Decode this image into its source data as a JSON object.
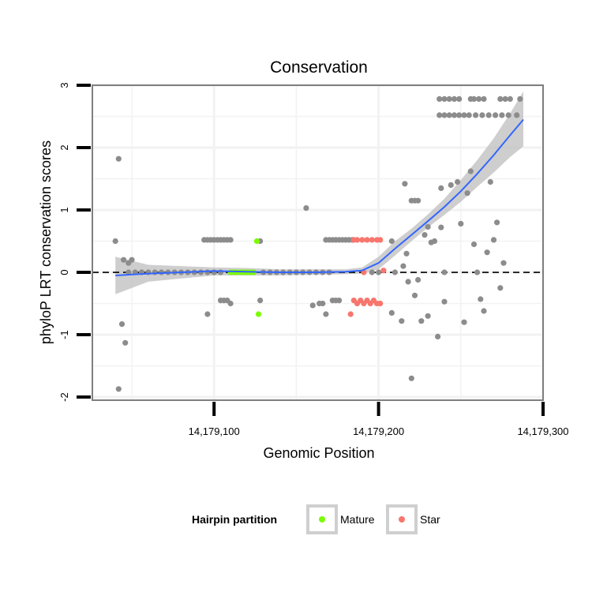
{
  "chart_data": {
    "type": "scatter",
    "title": "Conservation",
    "xlabel": "Genomic Position",
    "ylabel": "phyloP LRT conservation scores",
    "xlim": [
      14179026,
      14179300
    ],
    "ylim": [
      -2.05,
      3.0
    ],
    "x_ticks": [
      14179100,
      14179200,
      14179300
    ],
    "x_tick_labels": [
      "14,179,100",
      "14,179,200",
      "14,179,300"
    ],
    "y_ticks": [
      -2,
      -1,
      0,
      1,
      2,
      3
    ],
    "y_tick_labels": [
      "-2",
      "-1",
      "0",
      "1",
      "2",
      "3"
    ],
    "reference_line": {
      "y": 0,
      "style": "dashed"
    },
    "legend": {
      "title": "Hairpin partition",
      "position": "bottom",
      "entries": [
        {
          "label": "Mature",
          "color": "#7CFC00"
        },
        {
          "label": "Star",
          "color": "#F8766D"
        }
      ]
    },
    "colors": {
      "Other": "#8c8c8c",
      "Mature": "#7CFC00",
      "Star": "#F8766D",
      "smooth_line": "#3366FF",
      "ribbon": "#BDBDBD",
      "grid": "#F2F2F2",
      "panel_border": "#7F7F7F"
    },
    "smooth": {
      "x": [
        14179040,
        14179060,
        14179080,
        14179100,
        14179120,
        14179140,
        14179160,
        14179180,
        14179190,
        14179200,
        14179210,
        14179220,
        14179230,
        14179240,
        14179250,
        14179260,
        14179270,
        14179280,
        14179288
      ],
      "y": [
        -0.05,
        -0.02,
        0.0,
        0.02,
        0.01,
        0.0,
        0.0,
        0.01,
        0.03,
        0.15,
        0.38,
        0.6,
        0.82,
        1.05,
        1.3,
        1.58,
        1.88,
        2.2,
        2.45
      ],
      "lower": [
        -0.35,
        -0.15,
        -0.1,
        -0.05,
        -0.05,
        -0.05,
        -0.04,
        -0.03,
        -0.02,
        0.05,
        0.27,
        0.5,
        0.72,
        0.92,
        1.13,
        1.37,
        1.6,
        1.85,
        2.02
      ],
      "upper": [
        0.25,
        0.12,
        0.1,
        0.08,
        0.07,
        0.05,
        0.05,
        0.05,
        0.08,
        0.25,
        0.5,
        0.7,
        0.93,
        1.18,
        1.48,
        1.8,
        2.15,
        2.55,
        2.9
      ]
    },
    "series": [
      {
        "name": "Other",
        "points": [
          [
            14179040,
            0.5
          ],
          [
            14179042,
            1.82
          ],
          [
            14179042,
            -1.87
          ],
          [
            14179044,
            -0.83
          ],
          [
            14179045,
            0.2
          ],
          [
            14179046,
            -1.13
          ],
          [
            14179048,
            0.15
          ],
          [
            14179050,
            0.2
          ],
          [
            14179048,
            0.0
          ],
          [
            14179052,
            0.0
          ],
          [
            14179056,
            0.0
          ],
          [
            14179060,
            0.0
          ],
          [
            14179064,
            0.0
          ],
          [
            14179068,
            0.0
          ],
          [
            14179072,
            0.0
          ],
          [
            14179076,
            0.0
          ],
          [
            14179080,
            0.0
          ],
          [
            14179084,
            0.0
          ],
          [
            14179088,
            0.0
          ],
          [
            14179092,
            0.0
          ],
          [
            14179096,
            0.0
          ],
          [
            14179100,
            0.0
          ],
          [
            14179104,
            0.0
          ],
          [
            14179094,
            0.52
          ],
          [
            14179096,
            0.52
          ],
          [
            14179098,
            0.52
          ],
          [
            14179100,
            0.52
          ],
          [
            14179102,
            0.52
          ],
          [
            14179104,
            0.52
          ],
          [
            14179106,
            0.52
          ],
          [
            14179108,
            0.52
          ],
          [
            14179110,
            0.52
          ],
          [
            14179128,
            0.5
          ],
          [
            14179096,
            -0.67
          ],
          [
            14179104,
            -0.45
          ],
          [
            14179106,
            -0.45
          ],
          [
            14179108,
            -0.45
          ],
          [
            14179110,
            -0.5
          ],
          [
            14179128,
            -0.45
          ],
          [
            14179130,
            0.0
          ],
          [
            14179134,
            0.0
          ],
          [
            14179138,
            0.0
          ],
          [
            14179142,
            0.0
          ],
          [
            14179146,
            0.0
          ],
          [
            14179150,
            0.0
          ],
          [
            14179154,
            0.0
          ],
          [
            14179158,
            0.0
          ],
          [
            14179162,
            0.0
          ],
          [
            14179166,
            0.0
          ],
          [
            14179170,
            0.0
          ],
          [
            14179156,
            1.03
          ],
          [
            14179160,
            -0.53
          ],
          [
            14179164,
            -0.5
          ],
          [
            14179166,
            -0.5
          ],
          [
            14179168,
            -0.67
          ],
          [
            14179172,
            -0.45
          ],
          [
            14179174,
            -0.45
          ],
          [
            14179176,
            -0.45
          ],
          [
            14179168,
            0.52
          ],
          [
            14179170,
            0.52
          ],
          [
            14179172,
            0.52
          ],
          [
            14179174,
            0.52
          ],
          [
            14179176,
            0.52
          ],
          [
            14179178,
            0.52
          ],
          [
            14179180,
            0.52
          ],
          [
            14179182,
            0.52
          ],
          [
            14179184,
            0.52
          ],
          [
            14179196,
            0.0
          ],
          [
            14179200,
            0.0
          ],
          [
            14179210,
            0.0
          ],
          [
            14179208,
            0.5
          ],
          [
            14179208,
            -0.65
          ],
          [
            14179214,
            -0.78
          ],
          [
            14179215,
            0.1
          ],
          [
            14179216,
            1.42
          ],
          [
            14179217,
            0.3
          ],
          [
            14179218,
            -0.15
          ],
          [
            14179220,
            1.15
          ],
          [
            14179222,
            1.15
          ],
          [
            14179224,
            1.15
          ],
          [
            14179220,
            -1.7
          ],
          [
            14179222,
            -0.37
          ],
          [
            14179224,
            -0.12
          ],
          [
            14179226,
            -0.78
          ],
          [
            14179228,
            0.6
          ],
          [
            14179230,
            0.73
          ],
          [
            14179230,
            -0.7
          ],
          [
            14179232,
            0.48
          ],
          [
            14179234,
            0.5
          ],
          [
            14179236,
            -1.03
          ],
          [
            14179238,
            0.72
          ],
          [
            14179238,
            1.35
          ],
          [
            14179240,
            0.0
          ],
          [
            14179240,
            -0.47
          ],
          [
            14179244,
            1.4
          ],
          [
            14179248,
            1.45
          ],
          [
            14179250,
            0.78
          ],
          [
            14179252,
            -0.8
          ],
          [
            14179254,
            1.27
          ],
          [
            14179256,
            1.62
          ],
          [
            14179258,
            0.45
          ],
          [
            14179260,
            0.0
          ],
          [
            14179262,
            -0.43
          ],
          [
            14179264,
            -0.62
          ],
          [
            14179266,
            0.32
          ],
          [
            14179268,
            1.45
          ],
          [
            14179270,
            0.52
          ],
          [
            14179272,
            0.8
          ],
          [
            14179274,
            -0.25
          ],
          [
            14179276,
            0.15
          ],
          [
            14179237,
            2.78
          ],
          [
            14179240,
            2.78
          ],
          [
            14179243,
            2.78
          ],
          [
            14179246,
            2.78
          ],
          [
            14179249,
            2.78
          ],
          [
            14179256,
            2.78
          ],
          [
            14179258,
            2.78
          ],
          [
            14179261,
            2.78
          ],
          [
            14179264,
            2.78
          ],
          [
            14179274,
            2.78
          ],
          [
            14179277,
            2.78
          ],
          [
            14179280,
            2.78
          ],
          [
            14179286,
            2.78
          ],
          [
            14179237,
            2.52
          ],
          [
            14179240,
            2.52
          ],
          [
            14179243,
            2.52
          ],
          [
            14179246,
            2.52
          ],
          [
            14179249,
            2.52
          ],
          [
            14179252,
            2.52
          ],
          [
            14179255,
            2.52
          ],
          [
            14179259,
            2.52
          ],
          [
            14179263,
            2.52
          ],
          [
            14179267,
            2.52
          ],
          [
            14179271,
            2.52
          ],
          [
            14179275,
            2.52
          ],
          [
            14179279,
            2.52
          ],
          [
            14179284,
            2.52
          ]
        ]
      },
      {
        "name": "Mature",
        "points": [
          [
            14179110,
            0.0
          ],
          [
            14179112,
            0.0
          ],
          [
            14179114,
            0.0
          ],
          [
            14179116,
            0.0
          ],
          [
            14179118,
            0.0
          ],
          [
            14179120,
            0.0
          ],
          [
            14179122,
            0.0
          ],
          [
            14179124,
            0.0
          ],
          [
            14179126,
            0.5
          ],
          [
            14179127,
            -0.67
          ]
        ]
      },
      {
        "name": "Star",
        "points": [
          [
            14179185,
            0.52
          ],
          [
            14179187,
            0.52
          ],
          [
            14179190,
            0.52
          ],
          [
            14179193,
            0.52
          ],
          [
            14179196,
            0.52
          ],
          [
            14179199,
            0.52
          ],
          [
            14179201,
            0.52
          ],
          [
            14179185,
            -0.45
          ],
          [
            14179187,
            -0.5
          ],
          [
            14179189,
            -0.45
          ],
          [
            14179191,
            -0.5
          ],
          [
            14179193,
            -0.45
          ],
          [
            14179195,
            -0.5
          ],
          [
            14179197,
            -0.45
          ],
          [
            14179199,
            -0.5
          ],
          [
            14179201,
            -0.5
          ],
          [
            14179191,
            0.0
          ],
          [
            14179203,
            0.03
          ],
          [
            14179183,
            -0.67
          ]
        ]
      }
    ]
  }
}
